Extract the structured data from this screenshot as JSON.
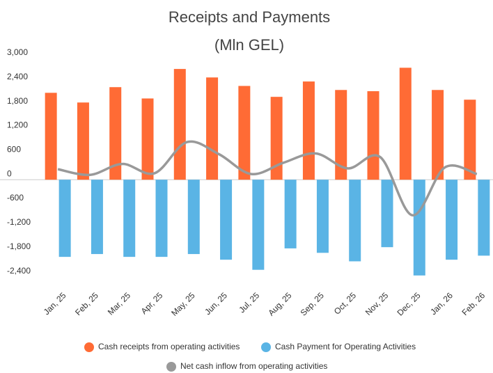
{
  "chart_data": {
    "type": "bar-line",
    "title": "Receipts and Payments",
    "subtitle": "(Mln GEL)",
    "categories": [
      "Jan, 25",
      "Feb, 25",
      "Mar, 25",
      "Apr, 25",
      "May, 25",
      "Jun, 25",
      "Jul, 25",
      "Aug, 25",
      "Sep, 25",
      "Oct, 25",
      "Nov, 25",
      "Dec, 25",
      "Jan, 26",
      "Feb, 26"
    ],
    "series": [
      {
        "name": "Cash receipts from operating activities",
        "color": "#ff6b35",
        "kind": "bar",
        "values": [
          2150,
          1910,
          2290,
          2010,
          2740,
          2530,
          2320,
          2050,
          2430,
          2220,
          2190,
          2770,
          2220,
          1980
        ]
      },
      {
        "name": "Cash Payment for Operating Activities",
        "color": "#5ab4e5",
        "kind": "bar",
        "values": [
          -1910,
          -1840,
          -1910,
          -1910,
          -1840,
          -1980,
          -2230,
          -1700,
          -1810,
          -2020,
          -1670,
          -2370,
          -1980,
          -1880
        ]
      },
      {
        "name": "Net cash inflow from operating activities",
        "color": "#999999",
        "kind": "line",
        "values": [
          260,
          120,
          390,
          160,
          930,
          630,
          140,
          420,
          650,
          280,
          560,
          -880,
          300,
          140
        ]
      }
    ],
    "ylim": [
      -2700,
      3000
    ],
    "yticks": [
      {
        "value": 3000,
        "label": "3,000"
      },
      {
        "value": 2400,
        "label": "2,400"
      },
      {
        "value": 1800,
        "label": "1,800"
      },
      {
        "value": 1200,
        "label": "1,200"
      },
      600,
      0,
      -600,
      {
        "value": -1200,
        "label": "-1,200"
      },
      {
        "value": -1800,
        "label": "-1,800"
      },
      {
        "value": -2400,
        "label": "-2,400"
      }
    ],
    "grid": false
  }
}
